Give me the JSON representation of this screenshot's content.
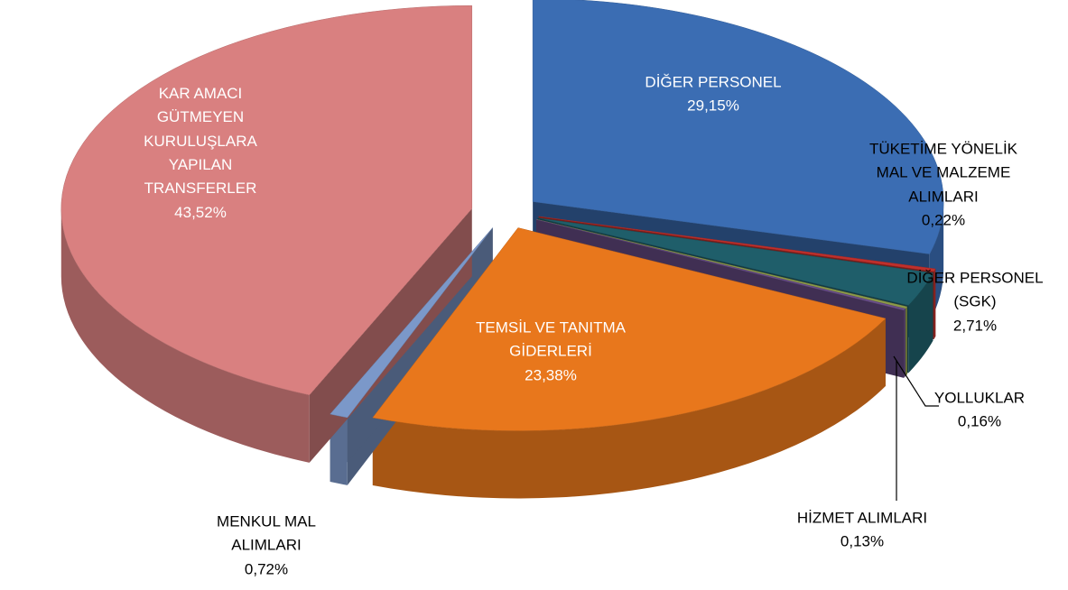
{
  "chart_data": {
    "type": "pie3d",
    "categories": [
      "DİĞER PERSONEL",
      "TÜKETİME YÖNELİK MAL VE MALZEME ALIMLARI",
      "DİĞER PERSONEL (SGK)",
      "YOLLUKLAR",
      "HİZMET ALIMLARI",
      "TEMSİL VE TANITMA GİDERLERİ",
      "MENKUL MAL ALIMLARI",
      "KAR AMACI GÜTMEYEN KURULUŞLARA YAPILAN TRANSFERLER"
    ],
    "values": [
      29.15,
      0.22,
      2.71,
      0.16,
      0.13,
      23.38,
      0.72,
      43.52
    ],
    "value_labels": [
      "29,15%",
      "0,22%",
      "2,71%",
      "0,16%",
      "0,13%",
      "23,38%",
      "0,72%",
      "43,52%"
    ],
    "colors": [
      "#3b6db3",
      "#c0302c",
      "#1f5e6a",
      "#8c9a48",
      "#6a4f8a",
      "#e8771c",
      "#7b98c9",
      "#d98080"
    ]
  }
}
